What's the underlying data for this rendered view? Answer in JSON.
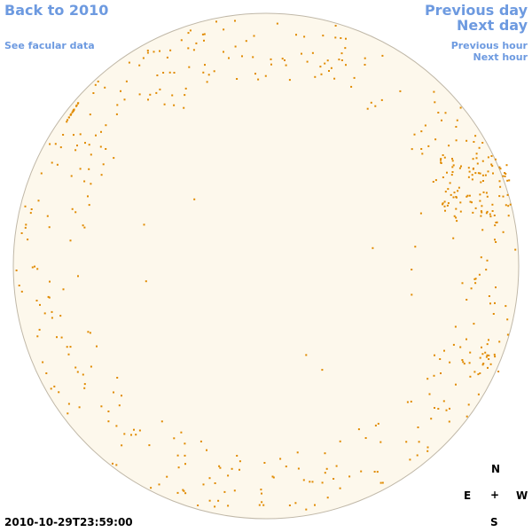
{
  "nav": {
    "back_year": "Back to 2010",
    "facular_link": "See facular data",
    "previous_day": "Previous day",
    "next_day": "Next day",
    "previous_hour": "Previous hour",
    "next_hour": "Next hour"
  },
  "timestamp": "2010-10-29T23:59:00",
  "compass": {
    "north": "N",
    "east": "E",
    "center": "+",
    "west": "W",
    "south": "S"
  }
}
